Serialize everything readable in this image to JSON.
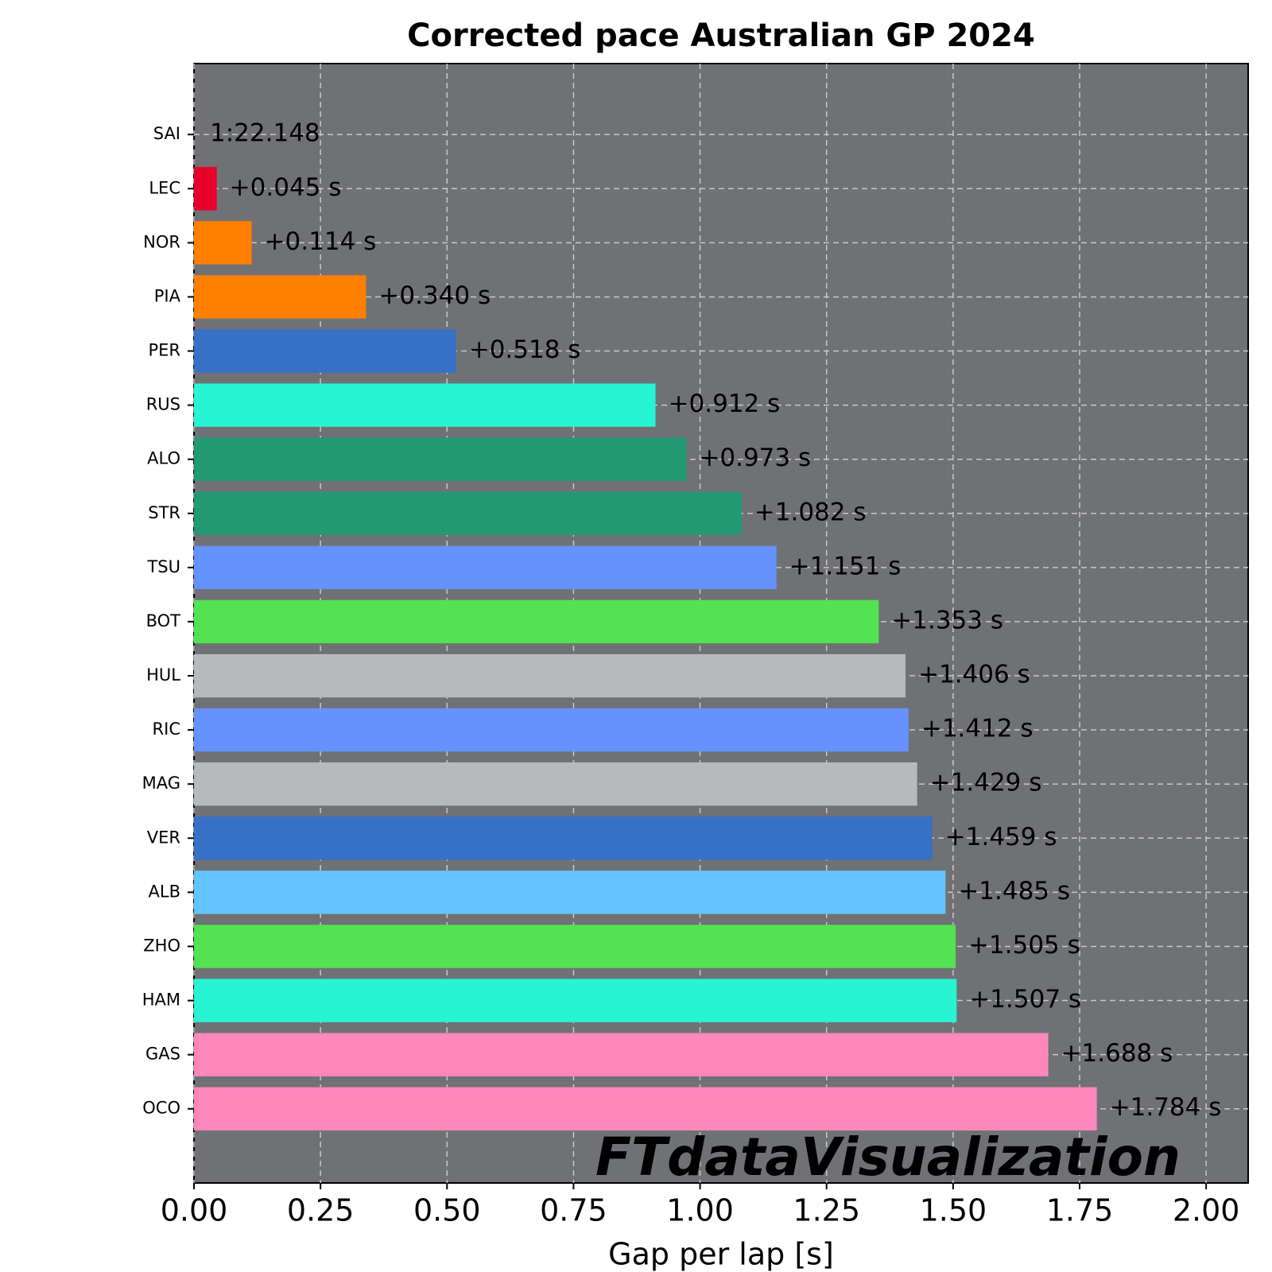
{
  "chart_data": {
    "type": "bar",
    "orientation": "horizontal",
    "title": "Corrected pace Australian GP 2024",
    "x_label": "Gap per lap [s]",
    "categories": [
      "SAI",
      "LEC",
      "NOR",
      "PIA",
      "PER",
      "RUS",
      "ALO",
      "STR",
      "TSU",
      "BOT",
      "HUL",
      "RIC",
      "MAG",
      "VER",
      "ALB",
      "ZHO",
      "HAM",
      "GAS",
      "OCO"
    ],
    "values": [
      0,
      0.045,
      0.114,
      0.34,
      0.518,
      0.912,
      0.973,
      1.082,
      1.151,
      1.353,
      1.406,
      1.412,
      1.429,
      1.459,
      1.485,
      1.505,
      1.507,
      1.688,
      1.784
    ],
    "value_labels": [
      null,
      "+0.045 s",
      "+0.114 s",
      "+0.340 s",
      "+0.518 s",
      "+0.912 s",
      "+0.973 s",
      "+1.082 s",
      "+1.151 s",
      "+1.353 s",
      "+1.406 s",
      "+1.412 s",
      "+1.429 s",
      "+1.459 s",
      "+1.485 s",
      "+1.505 s",
      "+1.507 s",
      "+1.688 s",
      "+1.784 s"
    ],
    "colors": [
      "#e8002d",
      "#e8002d",
      "#ff8000",
      "#ff8000",
      "#3671c6",
      "#27f4d2",
      "#229971",
      "#229971",
      "#6692ff",
      "#52e252",
      "#b6babd",
      "#6692ff",
      "#b6babd",
      "#3671c6",
      "#64c4ff",
      "#52e252",
      "#27f4d2",
      "#ff87bc",
      "#ff87bc"
    ],
    "reference_label": "1:22.148",
    "xlim": [
      0,
      2.083
    ],
    "xticks": [
      {
        "value": 0,
        "label": "0.00"
      },
      {
        "value": 0.25,
        "label": "0.25"
      },
      {
        "value": 0.5,
        "label": "0.50"
      },
      {
        "value": 0.75,
        "label": "0.75"
      },
      {
        "value": 1,
        "label": "1.00"
      },
      {
        "value": 1.25,
        "label": "1.25"
      },
      {
        "value": 1.5,
        "label": "1.50"
      },
      {
        "value": 1.75,
        "label": "1.75"
      },
      {
        "value": 2,
        "label": "2.00"
      }
    ],
    "grid": true,
    "background": "#6f7175",
    "watermark": "FTdataVisualization"
  }
}
